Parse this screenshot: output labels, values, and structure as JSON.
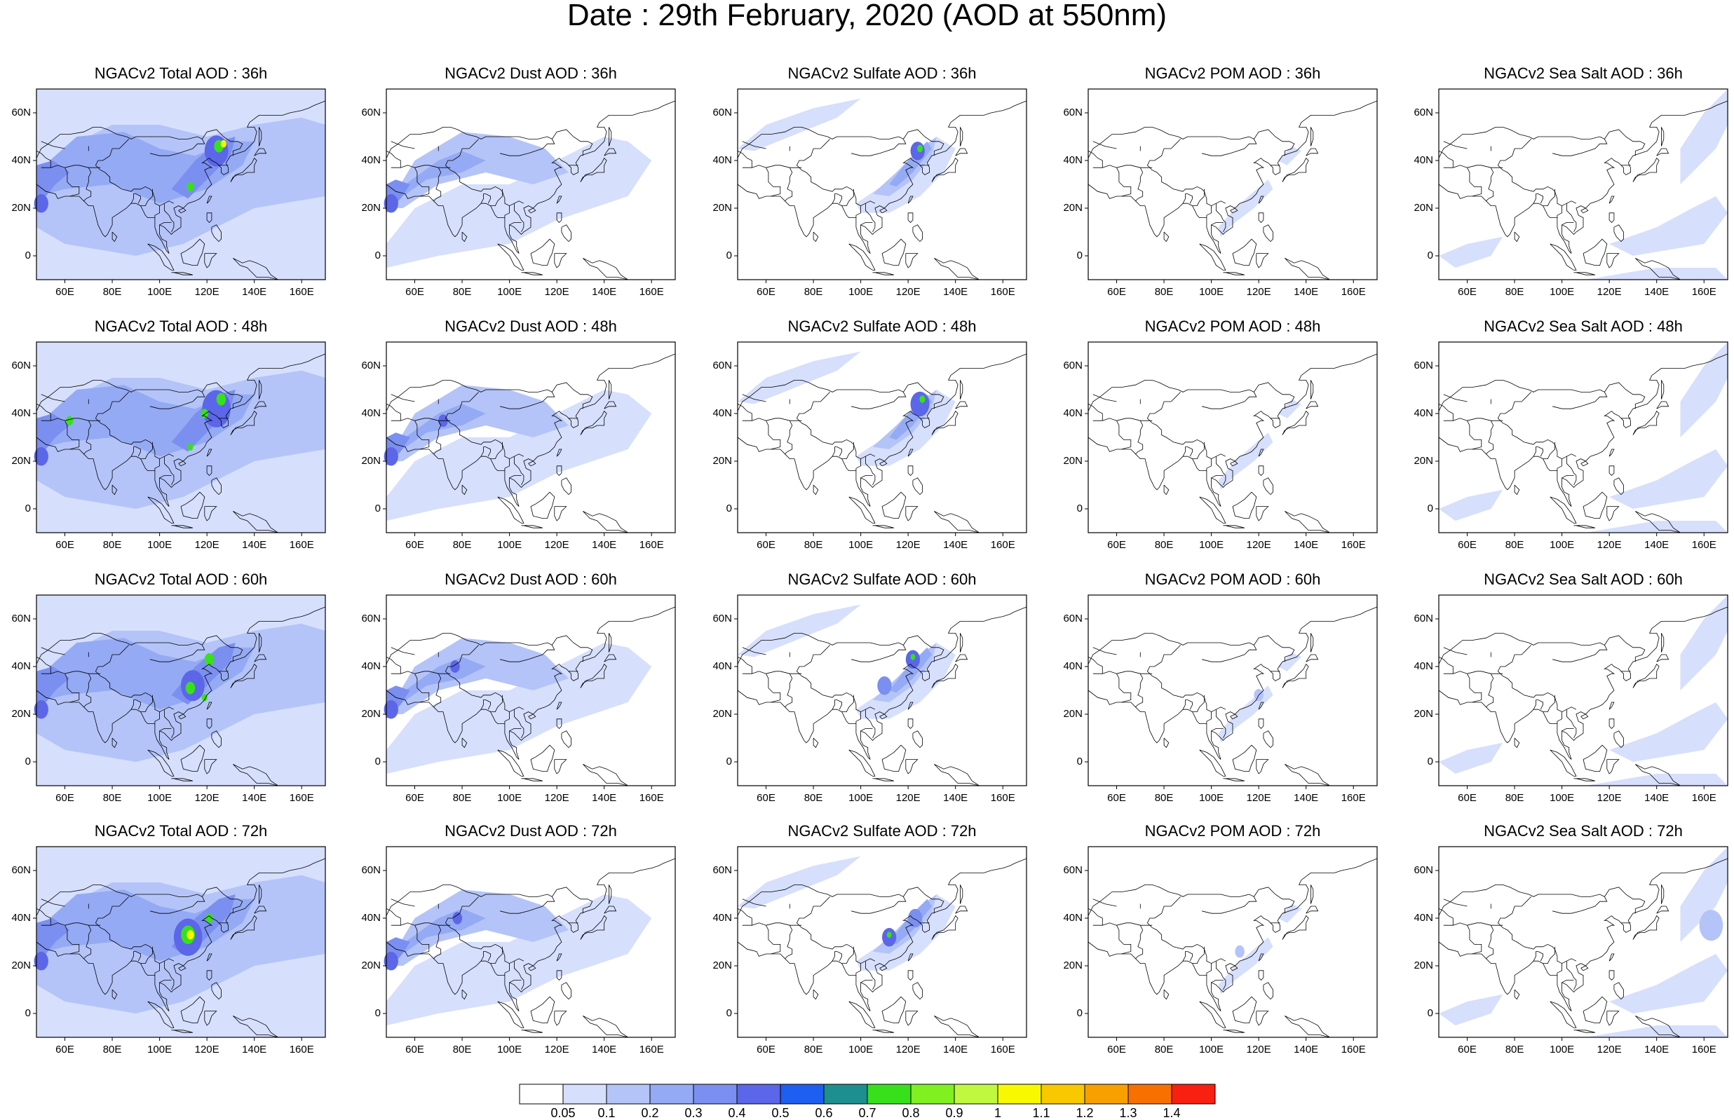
{
  "title": "Date : 29th February, 2020 (AOD at 550nm)",
  "axes": {
    "lat_ticks": [
      "60N",
      "40N",
      "20N",
      "0"
    ],
    "lon_ticks": [
      "60E",
      "80E",
      "100E",
      "120E",
      "140E",
      "160E"
    ]
  },
  "columns": [
    {
      "species": "Total"
    },
    {
      "species": "Dust"
    },
    {
      "species": "Sulfate"
    },
    {
      "species": "POM"
    },
    {
      "species": "Sea Salt"
    }
  ],
  "panels": [
    [
      "NGACv2 Total AOD : 36h",
      "NGACv2 Dust AOD : 36h",
      "NGACv2 Sulfate AOD : 36h",
      "NGACv2 POM AOD : 36h",
      "NGACv2 Sea Salt AOD : 36h"
    ],
    [
      "NGACv2 Total AOD : 48h",
      "NGACv2 Dust AOD : 48h",
      "NGACv2 Sulfate AOD : 48h",
      "NGACv2 POM AOD : 48h",
      "NGACv2 Sea Salt AOD : 48h"
    ],
    [
      "NGACv2 Total AOD : 60h",
      "NGACv2 Dust AOD : 60h",
      "NGACv2 Sulfate AOD : 60h",
      "NGACv2 POM AOD : 60h",
      "NGACv2 Sea Salt AOD : 60h"
    ],
    [
      "NGACv2 Total AOD : 72h",
      "NGACv2 Dust AOD : 72h",
      "NGACv2 Sulfate AOD : 72h",
      "NGACv2 POM AOD : 72h",
      "NGACv2 Sea Salt  AOD : 72h"
    ]
  ],
  "colorbar": {
    "labels": [
      "0.05",
      "0.1",
      "0.2",
      "0.3",
      "0.4",
      "0.5",
      "0.6",
      "0.7",
      "0.8",
      "0.9",
      "1",
      "1.1",
      "1.2",
      "1.3",
      "1.4"
    ],
    "colors": [
      "#ffffff",
      "#d6dffc",
      "#b4c4f8",
      "#95aaf4",
      "#7b8ff0",
      "#5b66e8",
      "#1e5ef0",
      "#1e8f8f",
      "#38e01c",
      "#80f020",
      "#c0f840",
      "#f8f800",
      "#f8c800",
      "#f8a000",
      "#f87000",
      "#f82010"
    ]
  }
}
